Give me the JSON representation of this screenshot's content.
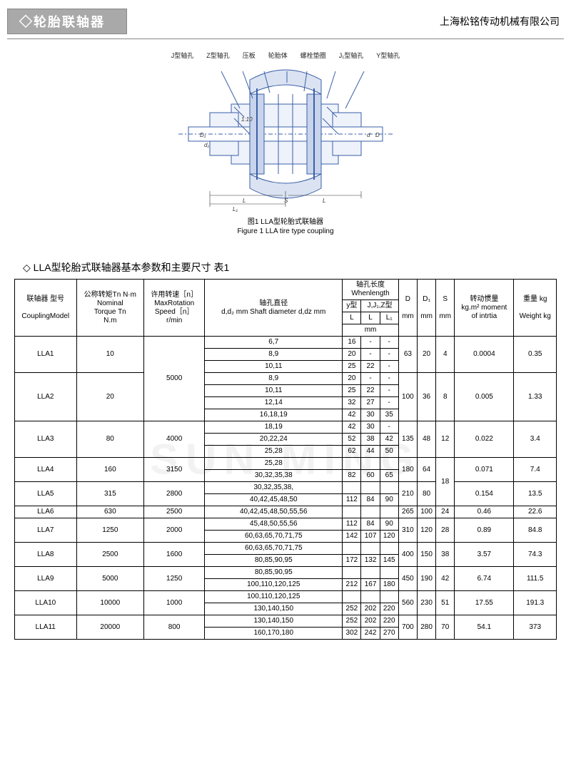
{
  "header": {
    "title_prefix": "◇",
    "title": "轮胎联轴器",
    "company": "上海松铭传动机械有限公司"
  },
  "figure": {
    "labels": [
      "J型轴孔",
      "Z型轴孔",
      "压板",
      "轮胎体",
      "螺栓垫圈",
      "J₁型轴孔",
      "Y型轴孔"
    ],
    "caption_cn": "图1 LLA型轮胎式联轴器",
    "caption_en": "Figure 1 LLA tire type coupling",
    "dims": [
      "D",
      "d",
      "d₁",
      "L",
      "L₁",
      "S",
      "1:10"
    ],
    "colors": {
      "line": "#3a5fa8",
      "hatch": "#3a5fa8",
      "bg": "#ffffff"
    }
  },
  "section": {
    "title": "◇ LLA型轮胎式联轴器基本参数和主要尺寸 表1"
  },
  "watermark": "SUN MING",
  "table": {
    "head": {
      "model_cn": "联轴器 型号",
      "model_en": "CouplingModel",
      "torque_cn": "公称转矩Tn N·m",
      "torque_en1": "Nominal",
      "torque_en2": "Torque Tn",
      "torque_unit": "N.m",
      "speed_cn": "许用转速［n］",
      "speed_en": "MaxRotation",
      "speed_en2": "Speed［n］",
      "speed_unit": "r/min",
      "shaft_cn": "轴孔直径",
      "shaft_en": "d,d₂    mm      Shaft diameter d,dz    mm",
      "whenlen_cn": "轴孔长度",
      "whenlen_en": "Whenlength",
      "ytype": "y型",
      "jztype": "J,J₁,Z型",
      "L": "L",
      "L1": "L₁",
      "mm": "mm",
      "D": "D",
      "D_mm": "mm",
      "D1": "D₁",
      "D1_mm": "mm",
      "S": "S",
      "S_mm": "mm",
      "inertia_cn": "转动惯量",
      "inertia_en": "kg.m²  moment",
      "inertia_en2": "of intrtia",
      "weight_cn": "重量     kg",
      "weight_en": "Weight   kg"
    },
    "rows": [
      {
        "model": "LLA1",
        "torque": "10",
        "speed_span": 2,
        "speed": "5000",
        "shaft": [
          "6,7",
          "8,9",
          "10,11"
        ],
        "yL": [
          "16",
          "20",
          "25"
        ],
        "jL": [
          "-",
          "-",
          "22"
        ],
        "l1": [
          "-",
          "-",
          "-"
        ],
        "D": "63",
        "D1": "20",
        "S": "4",
        "I": "0.0004",
        "W": "0.35"
      },
      {
        "model": "LLA2",
        "torque": "20",
        "shaft": [
          "8,9",
          "10,11",
          "12,14",
          "16,18,19"
        ],
        "yL": [
          "20",
          "25",
          "32",
          "42"
        ],
        "jL": [
          "-",
          "22",
          "27",
          "30"
        ],
        "l1": [
          "-",
          "-",
          "-",
          "35"
        ],
        "D": "100",
        "D1": "36",
        "S": "8",
        "I": "0.005",
        "W": "1.33"
      },
      {
        "model": "LLA3",
        "torque": "80",
        "speed": "4000",
        "shaft": [
          "18,19",
          "20,22,24",
          "25,28"
        ],
        "yL": [
          "42",
          "52",
          "62"
        ],
        "jL": [
          "30",
          "38",
          "44"
        ],
        "l1": [
          "-",
          "42",
          "50"
        ],
        "D": "135",
        "D1": "48",
        "S": "12",
        "I": "0.022",
        "W": "3.4",
        "share_last": true
      },
      {
        "model": "LLA4",
        "torque": "160",
        "speed": "3150",
        "shaft": [
          "25,28",
          "30,32,35,38"
        ],
        "yL": [
          "",
          "82"
        ],
        "jL": [
          "",
          "60"
        ],
        "l1": [
          "",
          "65"
        ],
        "D": "180",
        "D1": "64",
        "S_span": 2,
        "S": "18",
        "I": "0.071",
        "W": "7.4"
      },
      {
        "model": "LLA5",
        "torque": "315",
        "speed": "2800",
        "shaft": [
          "30,32,35,38,",
          "40,42,45,48,50"
        ],
        "yL": [
          "",
          "112"
        ],
        "jL": [
          "",
          "84"
        ],
        "l1": [
          "",
          "90"
        ],
        "D": "210",
        "D1": "80",
        "I": "0.154",
        "W": "13.5"
      },
      {
        "model": "LLA6",
        "torque": "630",
        "speed": "2500",
        "shaft": [
          "40,42,45,48,50,55,56"
        ],
        "yL": [
          ""
        ],
        "jL": [
          ""
        ],
        "l1": [
          ""
        ],
        "D": "265",
        "D1": "100",
        "S": "24",
        "I": "0.46",
        "W": "22.6"
      },
      {
        "model": "LLA7",
        "torque": "1250",
        "speed": "2000",
        "shaft": [
          "45,48,50,55,56",
          "60,63,65,70,71,75"
        ],
        "yL": [
          "112",
          "142"
        ],
        "jL": [
          "84",
          "107"
        ],
        "l1": [
          "90",
          "120"
        ],
        "D": "310",
        "D1": "120",
        "S": "28",
        "I": "0.89",
        "W": "84.8"
      },
      {
        "model": "LLA8",
        "torque": "2500",
        "speed": "1600",
        "shaft": [
          "60,63,65,70,71,75",
          "80,85,90,95"
        ],
        "yL": [
          "",
          "172"
        ],
        "jL": [
          "",
          "132"
        ],
        "l1": [
          "",
          "145"
        ],
        "D": "400",
        "D1": "150",
        "S": "38",
        "I": "3.57",
        "W": "74.3"
      },
      {
        "model": "LLA9",
        "torque": "5000",
        "speed": "1250",
        "shaft": [
          "80,85,90,95",
          "100,110,120,125"
        ],
        "yL": [
          "",
          "212"
        ],
        "jL": [
          "",
          "167"
        ],
        "l1": [
          "",
          "180"
        ],
        "D": "450",
        "D1": "190",
        "S": "42",
        "I": "6.74",
        "W": "111.5"
      },
      {
        "model": "LLA10",
        "torque": "10000",
        "speed": "1000",
        "shaft": [
          "100,110,120,125",
          "130,140,150"
        ],
        "yL": [
          "",
          "252"
        ],
        "jL": [
          "",
          "202"
        ],
        "l1": [
          "",
          "220"
        ],
        "D": "560",
        "D1": "230",
        "S": "51",
        "I": "17.55",
        "W": "191.3"
      },
      {
        "model": "LLA11",
        "torque": "20000",
        "speed": "800",
        "shaft": [
          "130,140,150",
          "160,170,180"
        ],
        "yL": [
          "252",
          "302"
        ],
        "jL": [
          "202",
          "242"
        ],
        "l1": [
          "220",
          "270"
        ],
        "D": "700",
        "D1": "280",
        "S": "70",
        "I": "54.1",
        "W": "373"
      }
    ]
  }
}
